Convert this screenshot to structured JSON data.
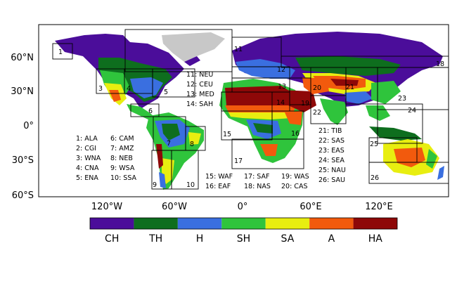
{
  "lat_labels": [
    "60°N",
    "30°N",
    "0°",
    "30°S",
    "60°S"
  ],
  "lon_labels": [
    "120°W",
    "60°W",
    "0°",
    "60°E",
    "120°E"
  ],
  "regions": [
    {
      "id": "1",
      "code": "ALA"
    },
    {
      "id": "2",
      "code": "CGI"
    },
    {
      "id": "3",
      "code": "WNA"
    },
    {
      "id": "4",
      "code": "CNA"
    },
    {
      "id": "5",
      "code": "ENA"
    },
    {
      "id": "6",
      "code": "CAM"
    },
    {
      "id": "7",
      "code": "AMZ"
    },
    {
      "id": "8",
      "code": "NEB"
    },
    {
      "id": "9",
      "code": "WSA"
    },
    {
      "id": "10",
      "code": "SSA"
    },
    {
      "id": "11",
      "code": "NEU"
    },
    {
      "id": "12",
      "code": "CEU"
    },
    {
      "id": "13",
      "code": "MED"
    },
    {
      "id": "14",
      "code": "SAH"
    },
    {
      "id": "15",
      "code": "WAF"
    },
    {
      "id": "16",
      "code": "EAF"
    },
    {
      "id": "17",
      "code": "SAF"
    },
    {
      "id": "18",
      "code": "NAS"
    },
    {
      "id": "19",
      "code": "WAS"
    },
    {
      "id": "20",
      "code": "CAS"
    },
    {
      "id": "21",
      "code": "TIB"
    },
    {
      "id": "22",
      "code": "SAS"
    },
    {
      "id": "23",
      "code": "EAS"
    },
    {
      "id": "24",
      "code": "SEA"
    },
    {
      "id": "25",
      "code": "NAU"
    },
    {
      "id": "26",
      "code": "SAU"
    }
  ],
  "legend": [
    {
      "label": "CH",
      "color": "#4b0d9a"
    },
    {
      "label": "TH",
      "color": "#0e6e1e"
    },
    {
      "label": "H",
      "color": "#3a6fe0"
    },
    {
      "label": "SH",
      "color": "#2fc43c"
    },
    {
      "label": "SA",
      "color": "#e8ee10"
    },
    {
      "label": "A",
      "color": "#f25a0d"
    },
    {
      "label": "HA",
      "color": "#8e0808"
    }
  ],
  "ice_color": "#c8c8c8"
}
